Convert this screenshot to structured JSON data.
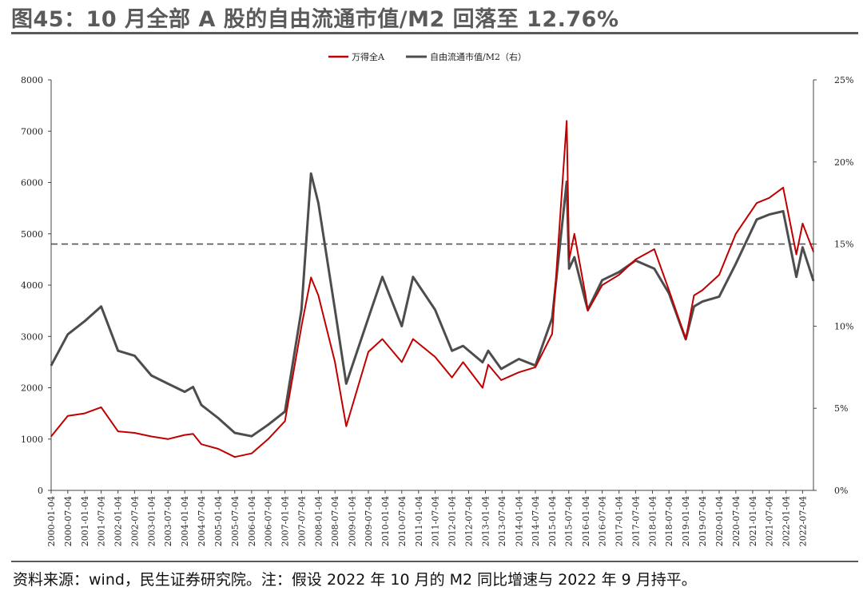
{
  "title": "图45：10 月全部 A 股的自由流通市值/M2 回落至 12.76%",
  "footnote": "资料来源：wind，民生证券研究院。注：假设 2022 年 10 月的 M2 同比增速与 2022 年 9 月持平。",
  "chart_data": {
    "type": "line",
    "x_tick_labels": [
      "2000-01-04",
      "2000-07-04",
      "2001-01-04",
      "2001-07-04",
      "2002-01-04",
      "2002-07-04",
      "2003-01-04",
      "2003-07-04",
      "2004-01-04",
      "2004-07-04",
      "2005-01-04",
      "2005-07-04",
      "2006-01-04",
      "2006-07-04",
      "2007-01-04",
      "2007-07-04",
      "2008-01-04",
      "2008-07-04",
      "2009-01-04",
      "2009-07-04",
      "2010-01-04",
      "2010-07-04",
      "2011-01-04",
      "2011-07-04",
      "2012-01-04",
      "2012-07-04",
      "2013-01-04",
      "2013-07-04",
      "2014-01-04",
      "2014-07-04",
      "2015-01-04",
      "2015-07-04",
      "2016-01-04",
      "2016-07-04",
      "2017-01-04",
      "2017-07-04",
      "2018-01-04",
      "2018-07-04",
      "2019-01-04",
      "2019-07-04",
      "2020-01-04",
      "2020-07-04",
      "2021-01-04",
      "2021-07-04",
      "2022-01-04",
      "2022-07-04"
    ],
    "y_left": {
      "ylim": [
        0,
        8000
      ],
      "ticks": [
        "0",
        "1000",
        "2000",
        "3000",
        "4000",
        "5000",
        "6000",
        "7000",
        "8000"
      ]
    },
    "y_right": {
      "ylim": [
        0,
        25
      ],
      "ticks": [
        "0%",
        "5%",
        "10%",
        "15%",
        "20%",
        "25%"
      ]
    },
    "reference_line": {
      "value": 15,
      "axis": "right",
      "style": "dashed"
    },
    "legend_position": "top-center",
    "series": [
      {
        "name": "万得全A",
        "axis": "left",
        "color": "#c00000",
        "x": [
          "2000-01-04",
          "2000-07-04",
          "2001-01-04",
          "2001-07-04",
          "2002-01-04",
          "2002-07-04",
          "2003-01-04",
          "2003-07-04",
          "2004-01-04",
          "2004-04-04",
          "2004-07-04",
          "2005-01-04",
          "2005-07-04",
          "2006-01-04",
          "2006-07-04",
          "2007-01-04",
          "2007-07-04",
          "2007-10-16",
          "2008-01-04",
          "2008-07-04",
          "2008-11-04",
          "2009-07-04",
          "2009-12-04",
          "2010-07-04",
          "2010-11-04",
          "2011-07-04",
          "2012-01-04",
          "2012-05-04",
          "2012-12-04",
          "2013-02-04",
          "2013-06-25",
          "2014-01-04",
          "2014-07-04",
          "2015-01-04",
          "2015-06-12",
          "2015-07-08",
          "2015-09-04",
          "2016-01-04",
          "2016-01-28",
          "2016-07-04",
          "2017-01-04",
          "2017-07-04",
          "2018-01-24",
          "2018-07-04",
          "2019-01-04",
          "2019-04-04",
          "2019-07-04",
          "2020-01-04",
          "2020-07-04",
          "2021-02-18",
          "2021-07-04",
          "2021-12-04",
          "2022-04-27",
          "2022-07-04",
          "2022-10-31"
        ],
        "values": [
          1050,
          1450,
          1500,
          1620,
          1150,
          1120,
          1050,
          1000,
          1080,
          1100,
          900,
          810,
          650,
          720,
          1000,
          1350,
          3200,
          4150,
          3800,
          2500,
          1250,
          2700,
          2950,
          2500,
          2950,
          2600,
          2200,
          2500,
          2000,
          2450,
          2150,
          2300,
          2400,
          3050,
          7200,
          4500,
          5000,
          3800,
          3500,
          4000,
          4200,
          4500,
          4700,
          3900,
          2950,
          3800,
          3900,
          4200,
          5000,
          5600,
          5700,
          5900,
          4600,
          5200,
          4650
        ]
      },
      {
        "name": "自由流通市值/M2（右）",
        "axis": "right",
        "color": "#4d4d4d",
        "x": [
          "2000-01-04",
          "2000-07-04",
          "2001-01-04",
          "2001-07-04",
          "2002-01-04",
          "2002-07-04",
          "2003-01-04",
          "2003-07-04",
          "2004-01-04",
          "2004-04-04",
          "2004-07-04",
          "2005-01-04",
          "2005-07-04",
          "2006-01-04",
          "2006-07-04",
          "2007-01-04",
          "2007-07-04",
          "2007-10-16",
          "2008-01-04",
          "2008-07-04",
          "2008-11-04",
          "2009-07-04",
          "2009-12-04",
          "2010-07-04",
          "2010-11-04",
          "2011-07-04",
          "2012-01-04",
          "2012-05-04",
          "2012-12-04",
          "2013-02-04",
          "2013-06-25",
          "2014-01-04",
          "2014-07-04",
          "2015-01-04",
          "2015-06-12",
          "2015-07-08",
          "2015-09-04",
          "2016-01-04",
          "2016-01-28",
          "2016-07-04",
          "2017-01-04",
          "2017-07-04",
          "2018-01-24",
          "2018-07-04",
          "2019-01-04",
          "2019-04-04",
          "2019-07-04",
          "2020-01-04",
          "2020-07-04",
          "2021-02-18",
          "2021-07-04",
          "2021-12-04",
          "2022-04-27",
          "2022-07-04",
          "2022-10-31"
        ],
        "values": [
          7.6,
          9.5,
          10.3,
          11.2,
          8.5,
          8.2,
          7.0,
          6.5,
          6.0,
          6.3,
          5.2,
          4.4,
          3.5,
          3.3,
          4.0,
          4.8,
          11.0,
          19.3,
          17.5,
          11.0,
          6.5,
          10.5,
          13.0,
          10.0,
          13.0,
          11.0,
          8.5,
          8.8,
          7.8,
          8.5,
          7.4,
          8.0,
          7.6,
          10.5,
          18.8,
          13.5,
          14.2,
          11.5,
          11.0,
          12.8,
          13.3,
          14.0,
          13.5,
          12.0,
          9.2,
          11.2,
          11.5,
          11.8,
          13.8,
          16.5,
          16.8,
          17.0,
          13.0,
          14.8,
          12.76
        ]
      }
    ]
  }
}
